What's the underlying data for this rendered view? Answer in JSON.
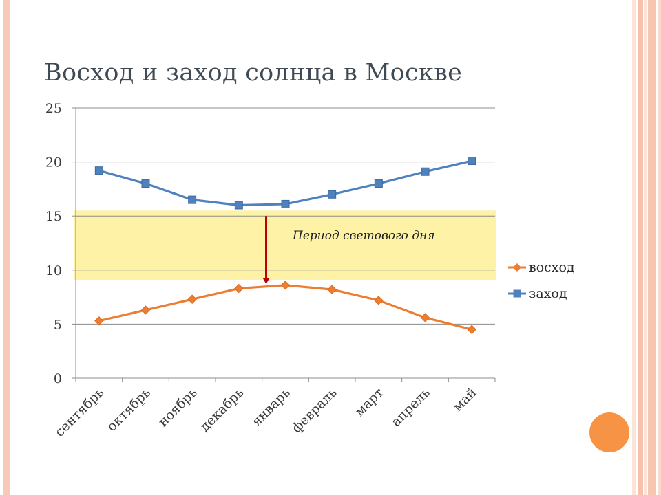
{
  "slide": {
    "title": "Восход и заход солнца в Москве"
  },
  "chart_data": {
    "type": "line",
    "title": "",
    "xlabel": "",
    "ylabel": "",
    "categories": [
      "сентябрь",
      "октябрь",
      "ноябрь",
      "декабрь",
      "январь",
      "февраль",
      "март",
      "апрель",
      "май"
    ],
    "ylim": [
      0,
      25
    ],
    "yticks": [
      0,
      5,
      10,
      15,
      20,
      25
    ],
    "grid": true,
    "legend_position": "right",
    "series": [
      {
        "name": "восход",
        "color": "#ed7d31",
        "marker": "diamond",
        "values": [
          5.3,
          6.3,
          7.3,
          8.3,
          8.6,
          8.2,
          7.2,
          5.6,
          4.5
        ]
      },
      {
        "name": "заход",
        "color": "#4f81bd",
        "marker": "square",
        "values": [
          19.2,
          18.0,
          16.5,
          16.0,
          16.1,
          17.0,
          18.0,
          19.1,
          20.1
        ]
      }
    ],
    "annotation": {
      "text": "Период светового дня",
      "band_range": [
        9.1,
        15.5
      ],
      "band_color": "#fdf2a6",
      "arrow_color": "#c00000",
      "arrow_from": 15.0,
      "arrow_to": 8.7
    }
  }
}
